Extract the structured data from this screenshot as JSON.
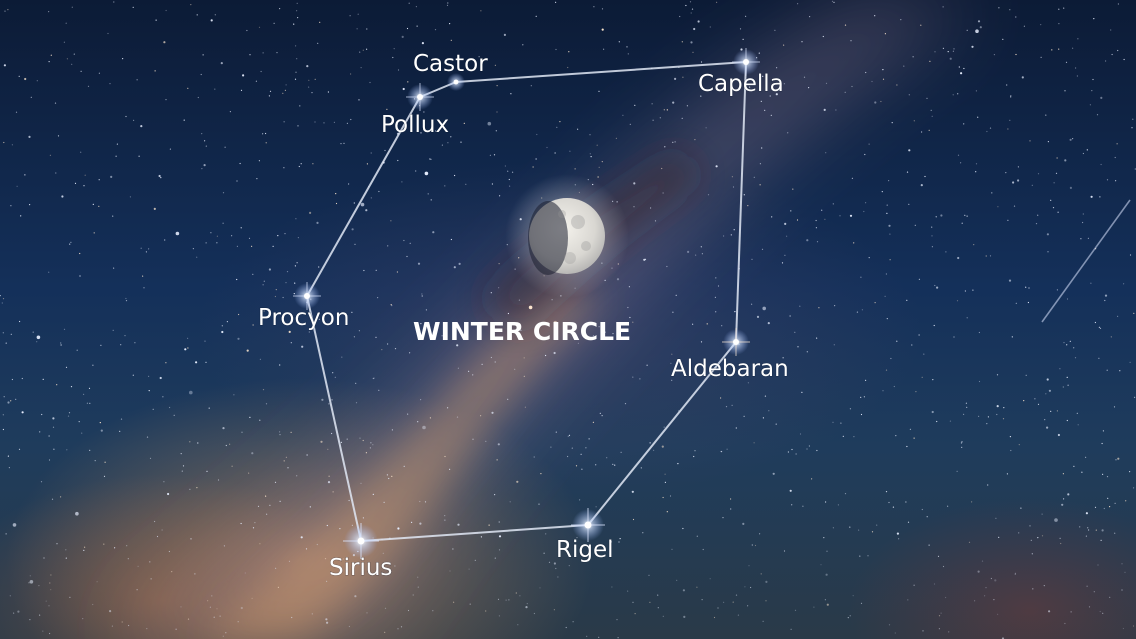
{
  "title": "WINTER CIRCLE",
  "stars": [
    {
      "id": "castor",
      "name": "Castor",
      "icon": "star-icon"
    },
    {
      "id": "pollux",
      "name": "Pollux",
      "icon": "star-icon"
    },
    {
      "id": "capella",
      "name": "Capella",
      "icon": "star-icon"
    },
    {
      "id": "procyon",
      "name": "Procyon",
      "icon": "star-icon"
    },
    {
      "id": "aldebaran",
      "name": "Aldebaran",
      "icon": "star-icon"
    },
    {
      "id": "sirius",
      "name": "Sirius",
      "icon": "star-icon"
    },
    {
      "id": "rigel",
      "name": "Rigel",
      "icon": "star-icon"
    }
  ],
  "moon": {
    "icon": "moon-icon",
    "phase": "waxing gibbous"
  },
  "colors": {
    "sky": "#0c1b36",
    "lines": "#e1e8f5",
    "labels": "#ffffff",
    "glow": "#d6965f"
  }
}
